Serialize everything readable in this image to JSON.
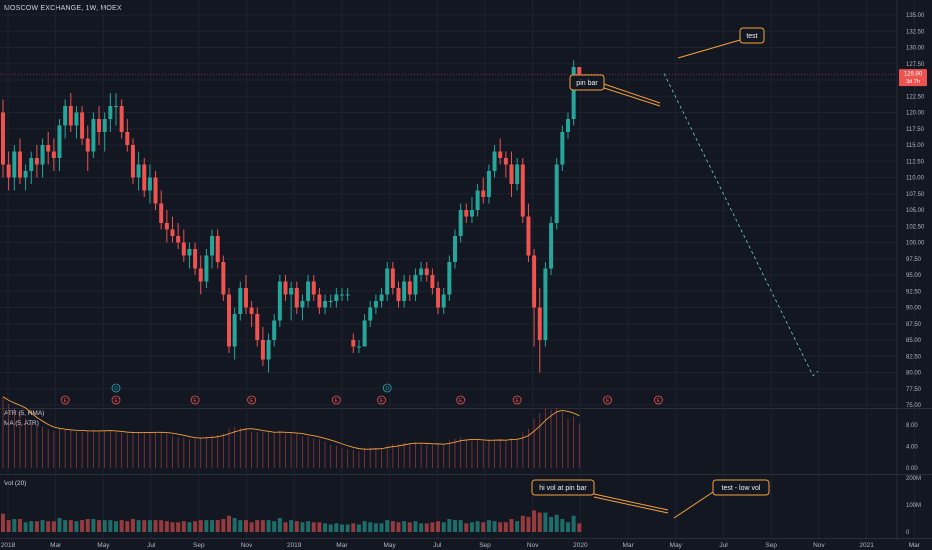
{
  "chart_data": {
    "type": "candlestick",
    "title": "MOSCOW EXCHANGE, 1W, MOEX",
    "price_axis": {
      "ylim": [
        75,
        135
      ],
      "ticks": [
        75.0,
        77.5,
        80.0,
        82.5,
        85.0,
        87.5,
        90.0,
        92.5,
        95.0,
        97.5,
        100.0,
        102.5,
        105.0,
        107.5,
        110.0,
        112.5,
        115.0,
        117.5,
        120.0,
        122.5,
        125.0,
        127.5,
        130.0,
        132.5,
        135.0
      ],
      "last_price": "125.90",
      "last_change": "3d 7h"
    },
    "time_axis": {
      "labels": [
        "2018",
        "Mar",
        "May",
        "Jul",
        "Sep",
        "Nov",
        "2019",
        "Mar",
        "May",
        "Jul",
        "Sep",
        "Nov",
        "2020",
        "Mar",
        "May",
        "Jul",
        "Sep",
        "Nov",
        "2021",
        "Mar"
      ]
    },
    "candles": [
      [
        120,
        122,
        110,
        112
      ],
      [
        112,
        114,
        108,
        110
      ],
      [
        110,
        115,
        108,
        114
      ],
      [
        114,
        116,
        109,
        110
      ],
      [
        110,
        112,
        108,
        111
      ],
      [
        111,
        114,
        109,
        113
      ],
      [
        113,
        115,
        110,
        112
      ],
      [
        112,
        116,
        110,
        115
      ],
      [
        115,
        117,
        112,
        114
      ],
      [
        114,
        116,
        111,
        113
      ],
      [
        113,
        119,
        111,
        118
      ],
      [
        118,
        122,
        116,
        121
      ],
      [
        121,
        123,
        117,
        118
      ],
      [
        118,
        121,
        116,
        120
      ],
      [
        120,
        121,
        115,
        116
      ],
      [
        116,
        118,
        111,
        114
      ],
      [
        114,
        120,
        113,
        119
      ],
      [
        119,
        121,
        115,
        117
      ],
      [
        117,
        120,
        114,
        119
      ],
      [
        119,
        123,
        117,
        121
      ],
      [
        121,
        123,
        118,
        121
      ],
      [
        121,
        122,
        116,
        117
      ],
      [
        117,
        119,
        114,
        115
      ],
      [
        115,
        116,
        109,
        110
      ],
      [
        110,
        114,
        108,
        112
      ],
      [
        112,
        113,
        107,
        108
      ],
      [
        108,
        112,
        106,
        110
      ],
      [
        110,
        111,
        105,
        106
      ],
      [
        106,
        108,
        102,
        103
      ],
      [
        103,
        105,
        100,
        102
      ],
      [
        102,
        104,
        100,
        101
      ],
      [
        101,
        103,
        99,
        100
      ],
      [
        100,
        102,
        97,
        98
      ],
      [
        98,
        100,
        96,
        99
      ],
      [
        99,
        100,
        95,
        96
      ],
      [
        96,
        98,
        92,
        94
      ],
      [
        94,
        99,
        93,
        98
      ],
      [
        98,
        102,
        96,
        101
      ],
      [
        101,
        102,
        96,
        97
      ],
      [
        97,
        98,
        91,
        92
      ],
      [
        92,
        93,
        83,
        84
      ],
      [
        84,
        90,
        82,
        89
      ],
      [
        89,
        94,
        88,
        93
      ],
      [
        93,
        95,
        89,
        90
      ],
      [
        90,
        91,
        87,
        89
      ],
      [
        89,
        90,
        84,
        85
      ],
      [
        85,
        87,
        81,
        82
      ],
      [
        82,
        86,
        80,
        85
      ],
      [
        85,
        89,
        84,
        88
      ],
      [
        88,
        95,
        87,
        94
      ],
      [
        94,
        95,
        91,
        92
      ],
      [
        92,
        94,
        88,
        93
      ],
      [
        93,
        94,
        89,
        90
      ],
      [
        90,
        92,
        88,
        91
      ],
      [
        91,
        95,
        90,
        94
      ],
      [
        94,
        95,
        91,
        92
      ],
      [
        92,
        93,
        89,
        90
      ],
      [
        90,
        92,
        89,
        91
      ],
      [
        91,
        92,
        90,
        91
      ],
      [
        91,
        93,
        90,
        92
      ],
      [
        92,
        93,
        91,
        92
      ],
      [
        92,
        93,
        91,
        92
      ],
      [
        85,
        86,
        83,
        84
      ],
      [
        84,
        85,
        83,
        84
      ],
      [
        84,
        89,
        84,
        88
      ],
      [
        88,
        91,
        87,
        90
      ],
      [
        90,
        92,
        89,
        91
      ],
      [
        91,
        93,
        90,
        92
      ],
      [
        92,
        97,
        91,
        96
      ],
      [
        96,
        97,
        92,
        93
      ],
      [
        93,
        94,
        90,
        91
      ],
      [
        91,
        95,
        90,
        94
      ],
      [
        94,
        95,
        91,
        92
      ],
      [
        92,
        96,
        91,
        95
      ],
      [
        95,
        97,
        94,
        96
      ],
      [
        96,
        97,
        94,
        95
      ],
      [
        95,
        96,
        92,
        93
      ],
      [
        93,
        94,
        89,
        90
      ],
      [
        90,
        93,
        89,
        92
      ],
      [
        92,
        98,
        91,
        97
      ],
      [
        97,
        102,
        96,
        101
      ],
      [
        101,
        106,
        100,
        105
      ],
      [
        105,
        106,
        103,
        104
      ],
      [
        104,
        107,
        103,
        105
      ],
      [
        105,
        109,
        104,
        108
      ],
      [
        108,
        110,
        106,
        107
      ],
      [
        107,
        112,
        106,
        111
      ],
      [
        111,
        115,
        110,
        114
      ],
      [
        114,
        116,
        112,
        113
      ],
      [
        113,
        114,
        110,
        112
      ],
      [
        112,
        114,
        107,
        109
      ],
      [
        109,
        113,
        108,
        112
      ],
      [
        112,
        113,
        103,
        104
      ],
      [
        104,
        106,
        97,
        98
      ],
      [
        98,
        99,
        84,
        90
      ],
      [
        90,
        93,
        80,
        85
      ],
      [
        85,
        97,
        84,
        96
      ],
      [
        96,
        104,
        95,
        103
      ],
      [
        103,
        113,
        102,
        112
      ],
      [
        112,
        118,
        111,
        117
      ],
      [
        117,
        120,
        116,
        119
      ],
      [
        119,
        128,
        118,
        127
      ],
      [
        127,
        127,
        124,
        125.9
      ]
    ],
    "atr": {
      "label_atr": "ATR (5, RMA)",
      "label_ma": "MA (5, ATR)",
      "ticks": [
        0.0,
        4.0,
        8.0
      ],
      "ylim": [
        0,
        10
      ]
    },
    "volume": {
      "label": "Vol (20)",
      "ticks": [
        "0",
        "100M",
        "200M"
      ],
      "ylim": [
        0,
        200
      ]
    },
    "event_markers": [
      {
        "label": "E",
        "x": 11
      },
      {
        "label": "E",
        "x": 20
      },
      {
        "label": "E",
        "x": 34
      },
      {
        "label": "E",
        "x": 44
      },
      {
        "label": "E",
        "x": 59
      },
      {
        "label": "E",
        "x": 67
      },
      {
        "label": "E",
        "x": 81
      },
      {
        "label": "E",
        "x": 91
      },
      {
        "label": "E",
        "x": 107
      },
      {
        "label": "E",
        "x": 116
      },
      {
        "label": "D",
        "x": 20
      },
      {
        "label": "D",
        "x": 68
      }
    ],
    "annotations": [
      {
        "text": "test"
      },
      {
        "text": "pin bar"
      },
      {
        "text": "hi vol at pin bar"
      },
      {
        "text": "test - low vol"
      }
    ]
  },
  "colors": {
    "up": "#26a69a",
    "down": "#ef5350",
    "background": "#131722",
    "grid": "#1e222d",
    "annotation": "#f7a23b",
    "forecast": "#5dd7d2"
  }
}
